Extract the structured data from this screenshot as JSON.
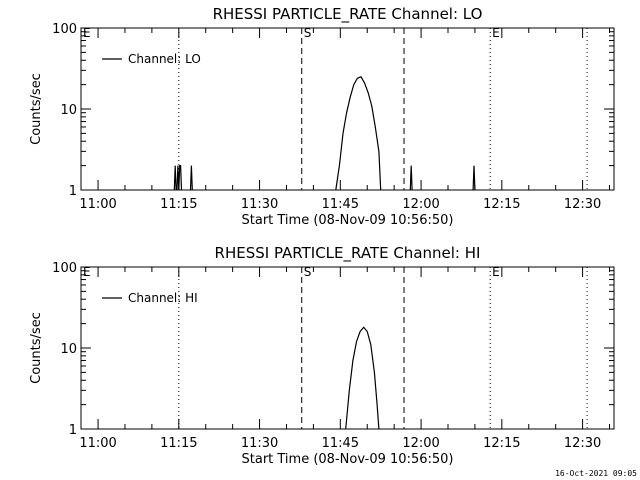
{
  "footer": {
    "timestamp": "16-Oct-2021 09:05"
  },
  "chart_data": [
    {
      "type": "line",
      "title": "RHESSI PARTICLE_RATE Channel: LO",
      "xlabel": "Start Time (08-Nov-09 10:56:50)",
      "ylabel": "Counts/sec",
      "y_scale": "log",
      "ylim": [
        1,
        100
      ],
      "xlim": [
        "10:56:50",
        "12:35:50"
      ],
      "x_tick_labels": [
        "11:00",
        "11:15",
        "11:30",
        "11:45",
        "12:00",
        "12:15",
        "12:30"
      ],
      "y_tick_labels": [
        "1",
        "10",
        "100"
      ],
      "legend": {
        "placement": "top-left",
        "entries": [
          "Channel: LO"
        ]
      },
      "markers": [
        {
          "label": "E",
          "time": "10:56:50",
          "style": "dotted"
        },
        {
          "label": "",
          "time": "11:15:00",
          "style": "dotted"
        },
        {
          "label": "S",
          "time": "11:37:50",
          "style": "dashed"
        },
        {
          "label": "",
          "time": "11:56:50",
          "style": "dashed"
        },
        {
          "label": "E",
          "time": "12:12:50",
          "style": "dotted"
        },
        {
          "label": "",
          "time": "12:30:50",
          "style": "dotted"
        }
      ],
      "series": [
        {
          "name": "Channel: LO",
          "segments": [
            [
              [
                "11:14:10",
                1
              ],
              [
                "11:14:20",
                2
              ],
              [
                "11:14:30",
                1
              ]
            ],
            [
              [
                "11:14:40",
                1
              ],
              [
                "11:14:50",
                2
              ],
              [
                "11:15:00",
                1
              ],
              [
                "11:15:10",
                2
              ],
              [
                "11:15:20",
                2
              ],
              [
                "11:15:30",
                1
              ]
            ],
            [
              [
                "11:17:10",
                1
              ],
              [
                "11:17:20",
                2
              ],
              [
                "11:17:30",
                1
              ]
            ],
            [
              [
                "11:44:10",
                1
              ],
              [
                "11:44:50",
                2
              ],
              [
                "11:45:30",
                5
              ],
              [
                "11:46:10",
                9
              ],
              [
                "11:46:50",
                14
              ],
              [
                "11:47:30",
                20
              ],
              [
                "11:48:10",
                24
              ],
              [
                "11:48:50",
                25
              ],
              [
                "11:49:30",
                21
              ],
              [
                "11:50:10",
                16
              ],
              [
                "11:50:50",
                11
              ],
              [
                "11:51:30",
                6
              ],
              [
                "11:52:10",
                3
              ],
              [
                "11:52:30",
                1
              ]
            ],
            [
              [
                "11:58:00",
                1
              ],
              [
                "11:58:10",
                2
              ],
              [
                "11:58:20",
                1
              ]
            ],
            [
              [
                "12:09:40",
                1
              ],
              [
                "12:09:50",
                2
              ],
              [
                "12:10:00",
                1
              ]
            ]
          ]
        }
      ]
    },
    {
      "type": "line",
      "title": "RHESSI PARTICLE_RATE Channel: HI",
      "xlabel": "Start Time (08-Nov-09 10:56:50)",
      "ylabel": "Counts/sec",
      "y_scale": "log",
      "ylim": [
        1,
        100
      ],
      "xlim": [
        "10:56:50",
        "12:35:50"
      ],
      "x_tick_labels": [
        "11:00",
        "11:15",
        "11:30",
        "11:45",
        "12:00",
        "12:15",
        "12:30"
      ],
      "y_tick_labels": [
        "1",
        "10",
        "100"
      ],
      "legend": {
        "placement": "top-left",
        "entries": [
          "Channel: HI"
        ]
      },
      "markers": [
        {
          "label": "E",
          "time": "10:56:50",
          "style": "dotted"
        },
        {
          "label": "",
          "time": "11:15:00",
          "style": "dotted"
        },
        {
          "label": "S",
          "time": "11:37:50",
          "style": "dashed"
        },
        {
          "label": "",
          "time": "11:56:50",
          "style": "dashed"
        },
        {
          "label": "E",
          "time": "12:12:50",
          "style": "dotted"
        },
        {
          "label": "",
          "time": "12:30:50",
          "style": "dotted"
        }
      ],
      "series": [
        {
          "name": "Channel: HI",
          "segments": [
            [
              [
                "11:46:00",
                1
              ],
              [
                "11:46:40",
                3
              ],
              [
                "11:47:20",
                7
              ],
              [
                "11:48:00",
                12
              ],
              [
                "11:48:40",
                16
              ],
              [
                "11:49:20",
                18
              ],
              [
                "11:50:00",
                16
              ],
              [
                "11:50:40",
                11
              ],
              [
                "11:51:20",
                5
              ],
              [
                "11:51:50",
                2
              ],
              [
                "11:52:10",
                1
              ]
            ]
          ]
        }
      ]
    }
  ]
}
